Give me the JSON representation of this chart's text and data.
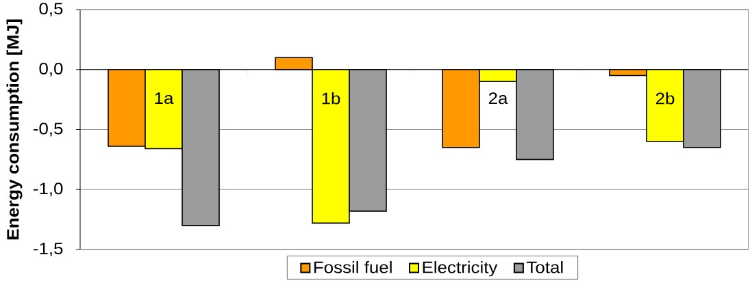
{
  "chart_data": {
    "type": "bar",
    "ylabel": "Energy consumption [MJ]",
    "categories": [
      "1a",
      "1b",
      "2a",
      "2b"
    ],
    "series": [
      {
        "name": "Fossil fuel",
        "color": "#ff9900",
        "values": [
          -0.64,
          0.1,
          -0.65,
          -0.05
        ]
      },
      {
        "name": "Electricity",
        "color": "#ffff00",
        "values": [
          -0.66,
          -1.28,
          -0.1,
          -0.6
        ]
      },
      {
        "name": "Total",
        "color": "#9c9c9c",
        "values": [
          -1.3,
          -1.18,
          -0.75,
          -0.65
        ]
      }
    ],
    "ylim": [
      -1.5,
      0.5
    ],
    "yticks": [
      {
        "value": -1.5,
        "label": "-1,5"
      },
      {
        "value": -1.0,
        "label": "-1,0"
      },
      {
        "value": -0.5,
        "label": "-0,5"
      },
      {
        "value": 0.0,
        "label": "0,0"
      },
      {
        "value": 0.5,
        "label": "0,5"
      }
    ],
    "grid": "y",
    "legend": "bottom"
  }
}
